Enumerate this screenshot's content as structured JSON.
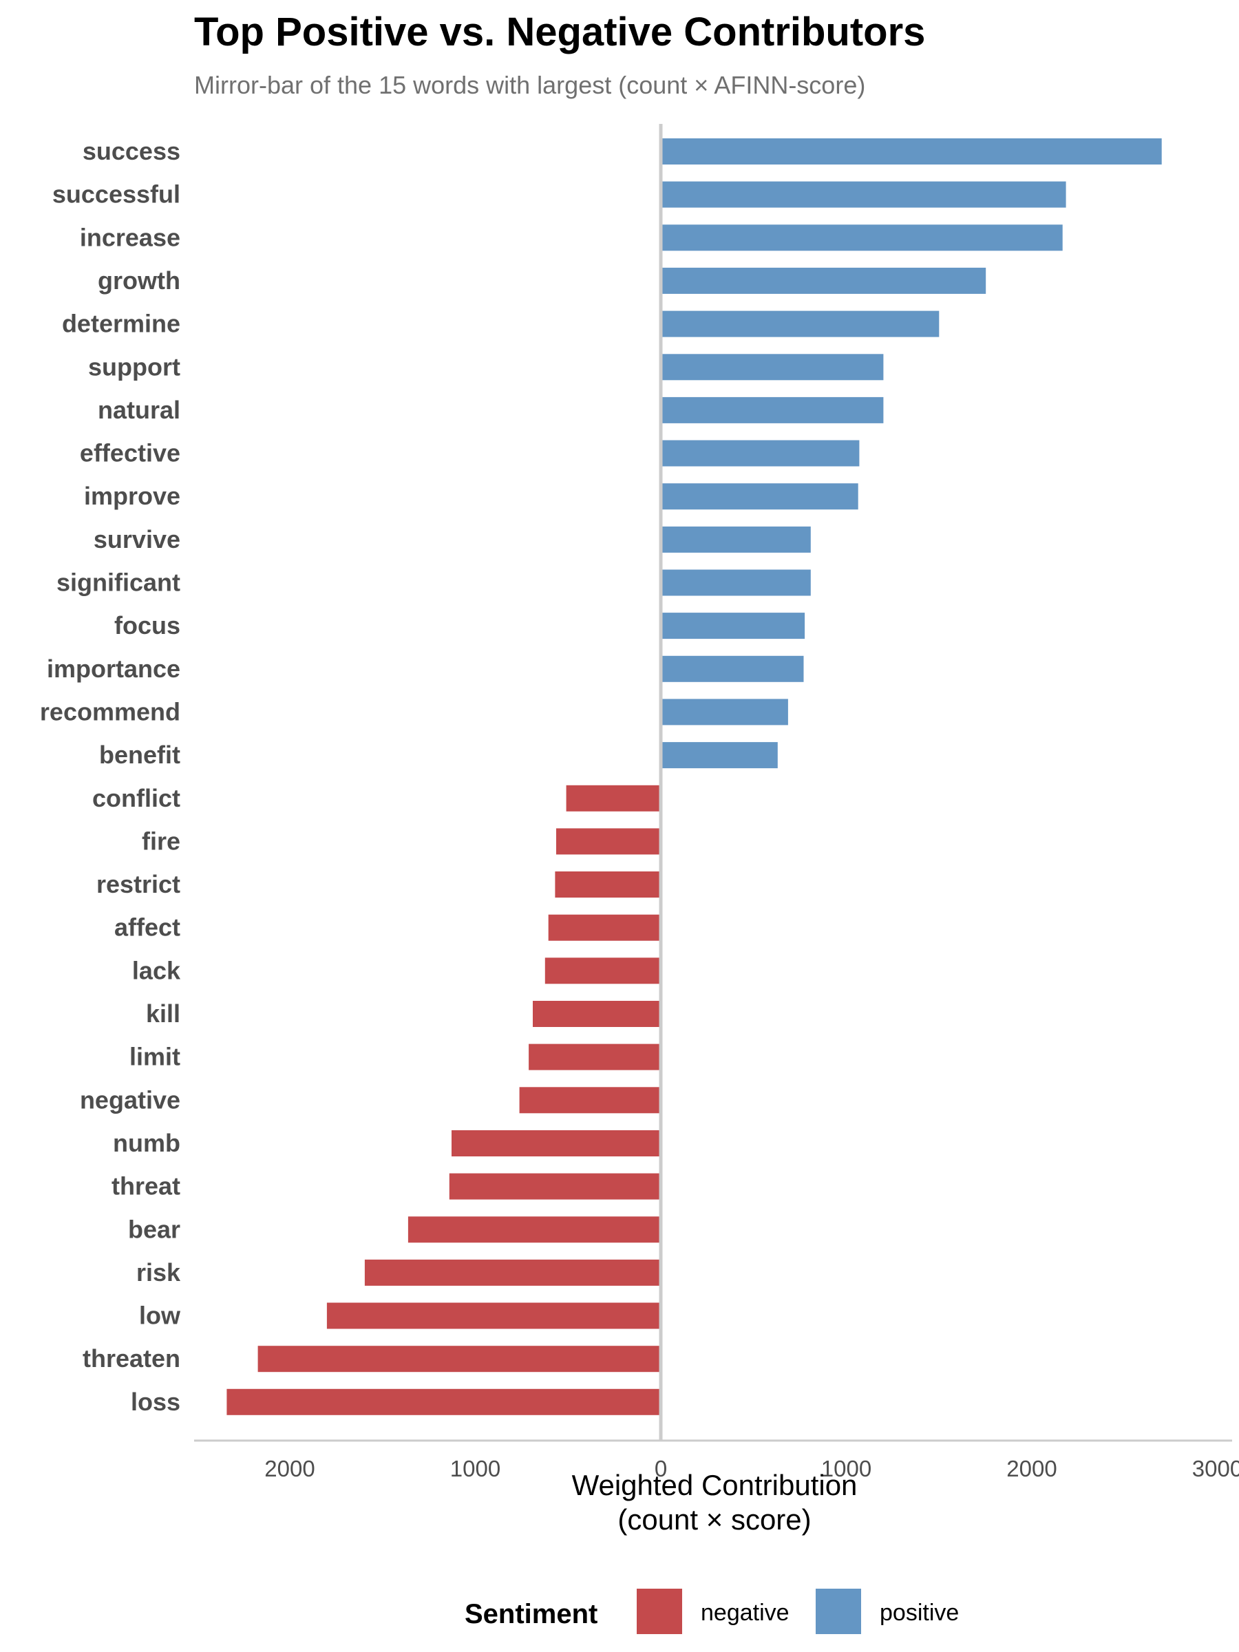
{
  "chart_data": {
    "type": "bar",
    "orientation": "horizontal",
    "title": "Top Positive vs. Negative Contributors",
    "subtitle": "Mirror-bar of the 15 words with largest (count × AFINN-score)",
    "xlabel_line1": "Weighted Contribution",
    "xlabel_line2": "(count × score)",
    "xlim": [
      -2600,
      3200
    ],
    "xticks": [
      -2000,
      -1000,
      0,
      1000,
      2000,
      3000
    ],
    "xtick_labels": [
      "2000",
      "1000",
      "0",
      "1000",
      "2000",
      "3000"
    ],
    "grid": false,
    "legend_position": "bottom",
    "legend_title": "Sentiment",
    "colors": {
      "negative": "#c44a4c",
      "positive": "#6496c4"
    },
    "legend": [
      {
        "key": "negative",
        "label": "negative"
      },
      {
        "key": "positive",
        "label": "positive"
      }
    ],
    "bars": [
      {
        "word": "success",
        "value": 2700,
        "sentiment": "positive"
      },
      {
        "word": "successful",
        "value": 2184,
        "sentiment": "positive"
      },
      {
        "word": "increase",
        "value": 2166,
        "sentiment": "positive"
      },
      {
        "word": "growth",
        "value": 1752,
        "sentiment": "positive"
      },
      {
        "word": "determine",
        "value": 1500,
        "sentiment": "positive"
      },
      {
        "word": "support",
        "value": 1200,
        "sentiment": "positive"
      },
      {
        "word": "natural",
        "value": 1200,
        "sentiment": "positive"
      },
      {
        "word": "effective",
        "value": 1070,
        "sentiment": "positive"
      },
      {
        "word": "improve",
        "value": 1064,
        "sentiment": "positive"
      },
      {
        "word": "survive",
        "value": 808,
        "sentiment": "positive"
      },
      {
        "word": "significant",
        "value": 808,
        "sentiment": "positive"
      },
      {
        "word": "focus",
        "value": 776,
        "sentiment": "positive"
      },
      {
        "word": "importance",
        "value": 770,
        "sentiment": "positive"
      },
      {
        "word": "recommend",
        "value": 686,
        "sentiment": "positive"
      },
      {
        "word": "benefit",
        "value": 630,
        "sentiment": "positive"
      },
      {
        "word": "conflict",
        "value": -510,
        "sentiment": "negative"
      },
      {
        "word": "fire",
        "value": -564,
        "sentiment": "negative"
      },
      {
        "word": "restrict",
        "value": -570,
        "sentiment": "negative"
      },
      {
        "word": "affect",
        "value": -606,
        "sentiment": "negative"
      },
      {
        "word": "lack",
        "value": -624,
        "sentiment": "negative"
      },
      {
        "word": "kill",
        "value": -690,
        "sentiment": "negative"
      },
      {
        "word": "limit",
        "value": -712,
        "sentiment": "negative"
      },
      {
        "word": "negative",
        "value": -762,
        "sentiment": "negative"
      },
      {
        "word": "numb",
        "value": -1128,
        "sentiment": "negative"
      },
      {
        "word": "threat",
        "value": -1140,
        "sentiment": "negative"
      },
      {
        "word": "bear",
        "value": -1362,
        "sentiment": "negative"
      },
      {
        "word": "risk",
        "value": -1596,
        "sentiment": "negative"
      },
      {
        "word": "low",
        "value": -1800,
        "sentiment": "negative"
      },
      {
        "word": "threaten",
        "value": -2172,
        "sentiment": "negative"
      },
      {
        "word": "loss",
        "value": -2340,
        "sentiment": "negative"
      }
    ]
  }
}
